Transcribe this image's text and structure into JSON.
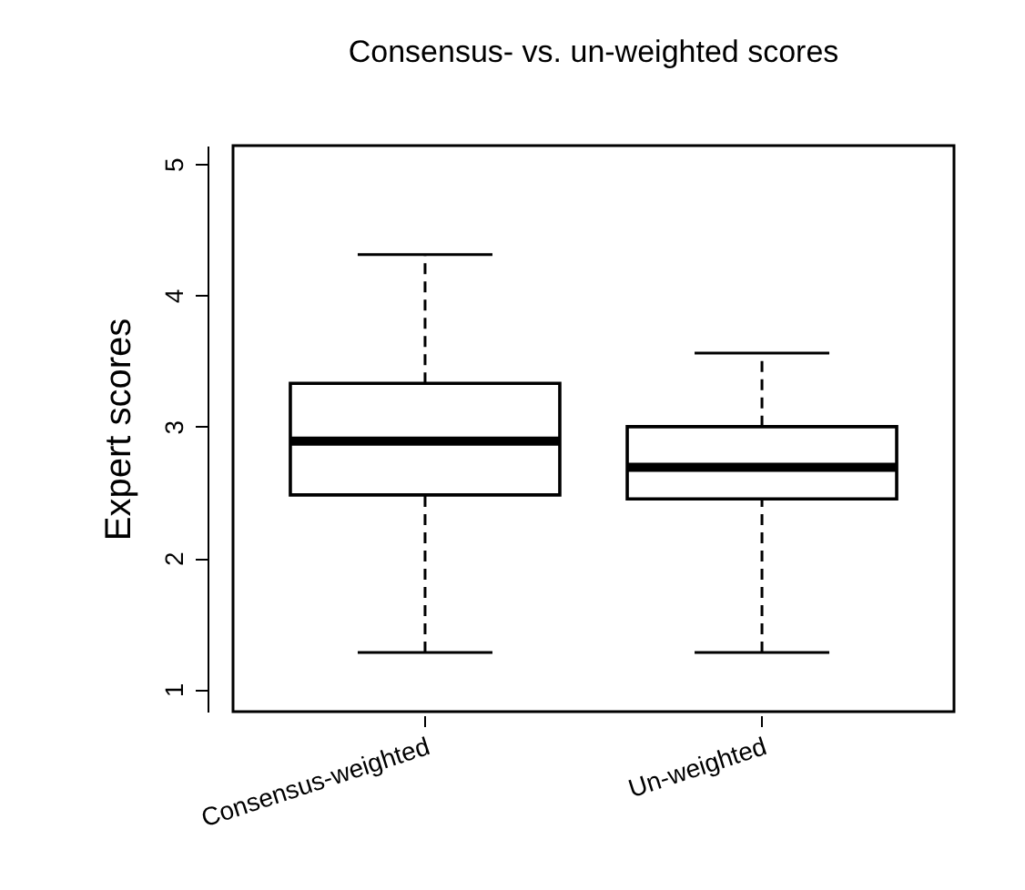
{
  "chart_data": {
    "type": "box",
    "title": "Consensus- vs. un-weighted scores",
    "ylabel": "Expert scores",
    "categories": [
      "Consensus-weighted",
      "Un-weighted"
    ],
    "boxes": [
      {
        "low": 1.28,
        "q1": 2.48,
        "median": 2.89,
        "q3": 3.33,
        "high": 4.31
      },
      {
        "low": 1.28,
        "q1": 2.45,
        "median": 2.69,
        "q3": 3.0,
        "high": 3.56
      }
    ],
    "ylim": [
      0.83,
      5.14
    ],
    "yticks": [
      1,
      2,
      3,
      4,
      5
    ]
  }
}
